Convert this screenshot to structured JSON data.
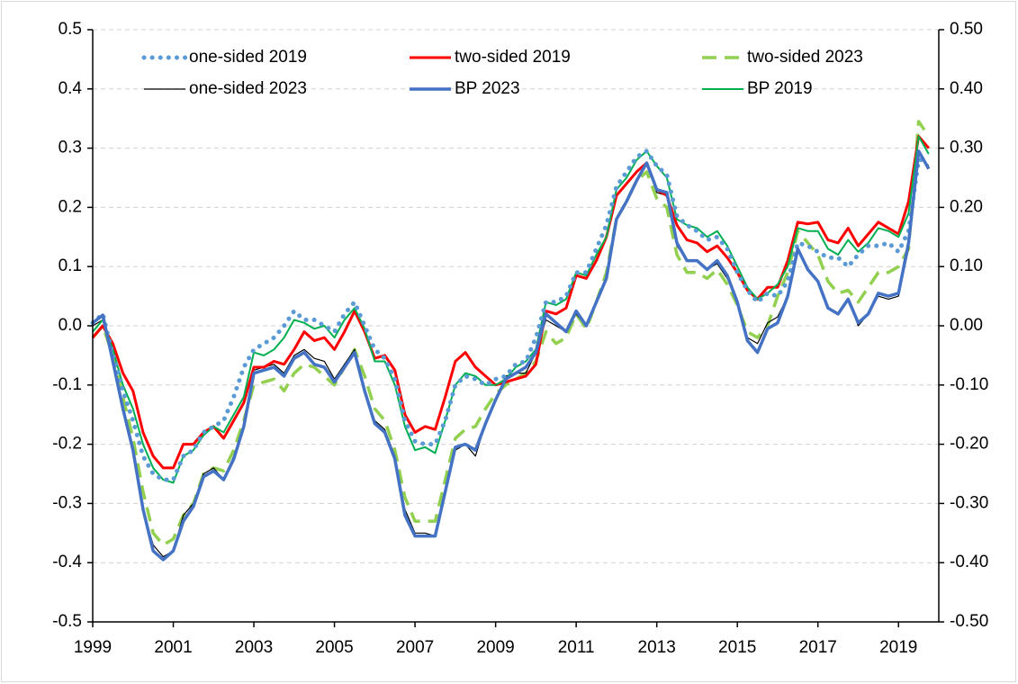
{
  "chart_data": {
    "type": "line",
    "x": [
      1999,
      1999.25,
      1999.5,
      1999.75,
      2000,
      2000.25,
      2000.5,
      2000.75,
      2001,
      2001.25,
      2001.5,
      2001.75,
      2002,
      2002.25,
      2002.5,
      2002.75,
      2003,
      2003.25,
      2003.5,
      2003.75,
      2004,
      2004.25,
      2004.5,
      2004.75,
      2005,
      2005.25,
      2005.5,
      2005.75,
      2006,
      2006.25,
      2006.5,
      2006.75,
      2007,
      2007.25,
      2007.5,
      2007.75,
      2008,
      2008.25,
      2008.5,
      2008.75,
      2009,
      2009.25,
      2009.5,
      2009.75,
      2010,
      2010.25,
      2010.5,
      2010.75,
      2011,
      2011.25,
      2011.5,
      2011.75,
      2012,
      2012.25,
      2012.5,
      2012.75,
      2013,
      2013.25,
      2013.5,
      2013.75,
      2014,
      2014.25,
      2014.5,
      2014.75,
      2015,
      2015.25,
      2015.5,
      2015.75,
      2016,
      2016.25,
      2016.5,
      2016.75,
      2017,
      2017.25,
      2017.5,
      2017.75,
      2018,
      2018.25,
      2018.5,
      2018.75,
      2019,
      2019.25,
      2019.5,
      2019.75
    ],
    "series": [
      {
        "name": "one-sided 2019",
        "color": "#5b9bd5",
        "style": "dotted",
        "width": 5,
        "values": [
          0.005,
          0.02,
          -0.05,
          -0.11,
          -0.16,
          -0.22,
          -0.25,
          -0.26,
          -0.26,
          -0.22,
          -0.21,
          -0.18,
          -0.17,
          -0.16,
          -0.12,
          -0.07,
          -0.04,
          -0.03,
          -0.02,
          0.0,
          0.025,
          0.01,
          0.01,
          0.0,
          -0.01,
          0.02,
          0.04,
          0.0,
          -0.04,
          -0.055,
          -0.09,
          -0.16,
          -0.195,
          -0.2,
          -0.2,
          -0.16,
          -0.1,
          -0.085,
          -0.09,
          -0.1,
          -0.09,
          -0.085,
          -0.065,
          -0.06,
          -0.02,
          0.04,
          0.04,
          0.05,
          0.09,
          0.09,
          0.13,
          0.17,
          0.235,
          0.26,
          0.285,
          0.295,
          0.27,
          0.255,
          0.185,
          0.17,
          0.16,
          0.145,
          0.15,
          0.13,
          0.09,
          0.06,
          0.04,
          0.055,
          0.05,
          0.075,
          0.14,
          0.135,
          0.125,
          0.115,
          0.115,
          0.1,
          0.12,
          0.135,
          0.135,
          0.14,
          0.125,
          0.16,
          0.28,
          0.28
        ]
      },
      {
        "name": "two-sided 2019",
        "color": "#ff0000",
        "style": "solid",
        "width": 3,
        "values": [
          -0.02,
          0.0,
          -0.03,
          -0.08,
          -0.11,
          -0.18,
          -0.22,
          -0.24,
          -0.24,
          -0.2,
          -0.2,
          -0.18,
          -0.17,
          -0.19,
          -0.16,
          -0.13,
          -0.07,
          -0.07,
          -0.06,
          -0.065,
          -0.04,
          -0.01,
          -0.025,
          -0.02,
          -0.04,
          -0.01,
          0.025,
          -0.01,
          -0.055,
          -0.05,
          -0.075,
          -0.15,
          -0.18,
          -0.17,
          -0.175,
          -0.12,
          -0.06,
          -0.045,
          -0.07,
          -0.085,
          -0.1,
          -0.095,
          -0.09,
          -0.085,
          -0.065,
          0.025,
          0.02,
          0.03,
          0.085,
          0.08,
          0.11,
          0.15,
          0.22,
          0.24,
          0.26,
          0.275,
          0.23,
          0.22,
          0.17,
          0.145,
          0.14,
          0.125,
          0.135,
          0.115,
          0.09,
          0.06,
          0.045,
          0.065,
          0.065,
          0.11,
          0.175,
          0.172,
          0.175,
          0.145,
          0.14,
          0.165,
          0.135,
          0.155,
          0.175,
          0.165,
          0.155,
          0.21,
          0.32,
          0.3
        ]
      },
      {
        "name": "two-sided 2023",
        "color": "#92d050",
        "style": "dashed",
        "width": 3.5,
        "values": [
          -0.02,
          0.0,
          -0.05,
          -0.12,
          -0.19,
          -0.28,
          -0.35,
          -0.37,
          -0.36,
          -0.32,
          -0.3,
          -0.25,
          -0.24,
          -0.245,
          -0.21,
          -0.16,
          -0.1,
          -0.095,
          -0.09,
          -0.11,
          -0.08,
          -0.065,
          -0.07,
          -0.085,
          -0.1,
          -0.07,
          -0.04,
          -0.085,
          -0.14,
          -0.16,
          -0.21,
          -0.29,
          -0.33,
          -0.33,
          -0.33,
          -0.26,
          -0.19,
          -0.175,
          -0.17,
          -0.14,
          -0.115,
          -0.1,
          -0.09,
          -0.08,
          -0.06,
          -0.01,
          -0.03,
          -0.02,
          0.02,
          -0.005,
          0.04,
          0.09,
          0.18,
          0.21,
          0.245,
          0.26,
          0.215,
          0.2,
          0.12,
          0.09,
          0.09,
          0.08,
          0.095,
          0.07,
          0.035,
          -0.01,
          -0.02,
          0.0,
          0.05,
          0.09,
          0.16,
          0.14,
          0.12,
          0.075,
          0.055,
          0.06,
          0.04,
          0.065,
          0.09,
          0.09,
          0.1,
          0.13,
          0.345,
          0.32
        ]
      },
      {
        "name": "one-sided 2023",
        "color": "#000000",
        "style": "solid",
        "width": 1.2,
        "values": [
          0.0,
          0.01,
          -0.06,
          -0.14,
          -0.21,
          -0.31,
          -0.37,
          -0.39,
          -0.38,
          -0.32,
          -0.3,
          -0.25,
          -0.24,
          -0.26,
          -0.22,
          -0.17,
          -0.075,
          -0.07,
          -0.065,
          -0.08,
          -0.05,
          -0.04,
          -0.055,
          -0.06,
          -0.09,
          -0.065,
          -0.04,
          -0.11,
          -0.16,
          -0.175,
          -0.22,
          -0.31,
          -0.35,
          -0.35,
          -0.355,
          -0.28,
          -0.21,
          -0.2,
          -0.22,
          -0.165,
          -0.125,
          -0.085,
          -0.08,
          -0.08,
          -0.045,
          0.01,
          0.0,
          -0.01,
          0.02,
          0.0,
          0.04,
          0.08,
          0.18,
          0.21,
          0.245,
          0.275,
          0.225,
          0.22,
          0.135,
          0.11,
          0.11,
          0.095,
          0.105,
          0.08,
          0.04,
          -0.02,
          -0.03,
          0.005,
          0.015,
          0.05,
          0.13,
          0.095,
          0.075,
          0.03,
          0.02,
          0.045,
          0.0,
          0.02,
          0.05,
          0.045,
          0.05,
          0.13,
          0.29,
          0.27
        ]
      },
      {
        "name": "BP 2023",
        "color": "#4472c4",
        "style": "solid",
        "width": 3.5,
        "values": [
          0.005,
          0.018,
          -0.06,
          -0.14,
          -0.21,
          -0.31,
          -0.38,
          -0.395,
          -0.38,
          -0.33,
          -0.305,
          -0.255,
          -0.245,
          -0.26,
          -0.225,
          -0.17,
          -0.08,
          -0.075,
          -0.07,
          -0.085,
          -0.055,
          -0.045,
          -0.065,
          -0.07,
          -0.095,
          -0.07,
          -0.045,
          -0.11,
          -0.165,
          -0.18,
          -0.225,
          -0.32,
          -0.355,
          -0.355,
          -0.355,
          -0.28,
          -0.205,
          -0.2,
          -0.21,
          -0.165,
          -0.125,
          -0.09,
          -0.08,
          -0.07,
          -0.045,
          0.02,
          0.005,
          -0.01,
          0.025,
          0.0,
          0.04,
          0.08,
          0.18,
          0.21,
          0.245,
          0.275,
          0.23,
          0.225,
          0.14,
          0.11,
          0.11,
          0.095,
          0.11,
          0.085,
          0.04,
          -0.025,
          -0.045,
          -0.005,
          0.005,
          0.05,
          0.13,
          0.095,
          0.075,
          0.03,
          0.02,
          0.045,
          0.005,
          0.02,
          0.055,
          0.05,
          0.055,
          0.14,
          0.295,
          0.265
        ]
      },
      {
        "name": "BP 2019",
        "color": "#00b050",
        "style": "solid",
        "width": 2,
        "values": [
          -0.01,
          0.01,
          -0.04,
          -0.1,
          -0.14,
          -0.2,
          -0.24,
          -0.26,
          -0.265,
          -0.22,
          -0.21,
          -0.185,
          -0.17,
          -0.18,
          -0.15,
          -0.12,
          -0.045,
          -0.05,
          -0.04,
          -0.02,
          0.01,
          0.005,
          -0.005,
          0.0,
          -0.02,
          0.01,
          0.03,
          -0.005,
          -0.06,
          -0.06,
          -0.1,
          -0.17,
          -0.21,
          -0.205,
          -0.215,
          -0.16,
          -0.1,
          -0.08,
          -0.085,
          -0.1,
          -0.1,
          -0.09,
          -0.07,
          -0.06,
          -0.04,
          0.04,
          0.035,
          0.045,
          0.09,
          0.085,
          0.12,
          0.15,
          0.23,
          0.25,
          0.28,
          0.295,
          0.27,
          0.25,
          0.18,
          0.17,
          0.165,
          0.15,
          0.16,
          0.135,
          0.1,
          0.065,
          0.045,
          0.055,
          0.07,
          0.1,
          0.165,
          0.16,
          0.16,
          0.13,
          0.12,
          0.145,
          0.125,
          0.14,
          0.165,
          0.16,
          0.15,
          0.19,
          0.32,
          0.29
        ]
      }
    ],
    "xlim": [
      1999,
      2020
    ],
    "xticks": [
      1999,
      2001,
      2003,
      2005,
      2007,
      2009,
      2011,
      2013,
      2015,
      2017,
      2019
    ],
    "ylim": [
      -0.5,
      0.5
    ],
    "yticks": [
      -0.5,
      -0.4,
      -0.3,
      -0.2,
      -0.1,
      {
        "value": 0,
        "label": "0.0"
      },
      0.1,
      0.2,
      0.3,
      0.4,
      0.5
    ],
    "y2lim": [
      -0.5,
      0.5
    ],
    "y2ticks": [
      {
        "value": -0.5,
        "label": "-0.50"
      },
      {
        "value": -0.4,
        "label": "-0.40"
      },
      {
        "value": -0.3,
        "label": "-0.30"
      },
      {
        "value": -0.2,
        "label": "-0.20"
      },
      {
        "value": -0.1,
        "label": "-0.10"
      },
      {
        "value": 0,
        "label": "0.00"
      },
      {
        "value": 0.1,
        "label": "0.10"
      },
      {
        "value": 0.2,
        "label": "0.20"
      },
      {
        "value": 0.3,
        "label": "0.30"
      },
      {
        "value": 0.4,
        "label": "0.40"
      },
      {
        "value": 0.5,
        "label": "0.50"
      }
    ],
    "grid": true,
    "legend": "top"
  }
}
